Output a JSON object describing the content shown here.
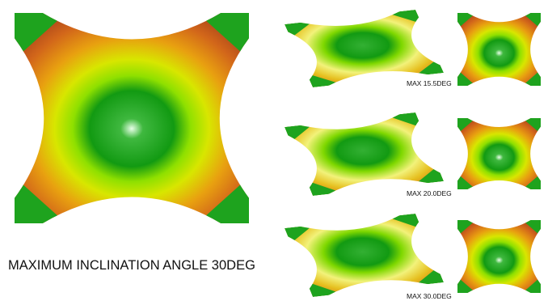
{
  "caption": "MAXIMUM INCLINATION ANGLE 30DEG",
  "panels": [
    {
      "label": "MAX 15.5DEG"
    },
    {
      "label": "MAX 20.0DEG"
    },
    {
      "label": "MAX 30.0DEG"
    }
  ]
}
